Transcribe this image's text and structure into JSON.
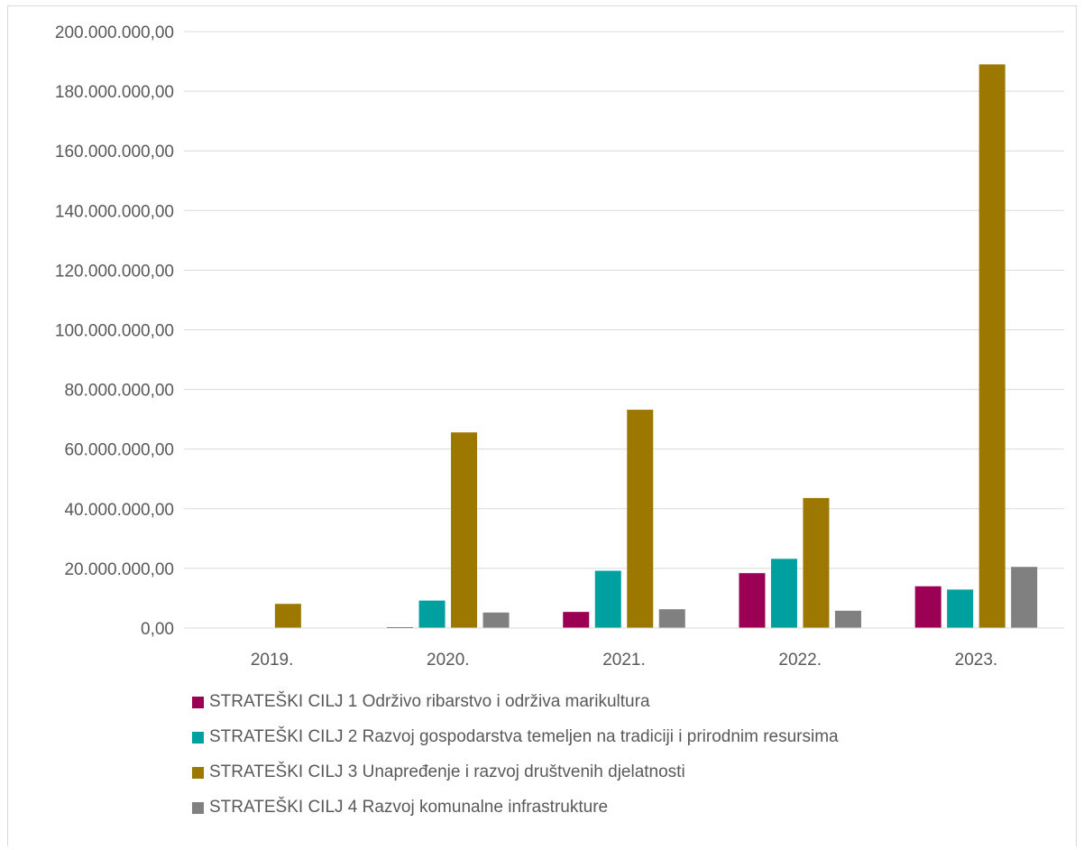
{
  "chart_data": {
    "type": "bar",
    "categories": [
      "2019.",
      "2020.",
      "2021.",
      "2022.",
      "2023."
    ],
    "series": [
      {
        "name": "STRATEŠKI CILJ 1 Održivo ribarstvo i održiva marikultura",
        "color": "#9b0055",
        "values": [
          0,
          300000,
          5400000,
          18400000,
          14000000
        ]
      },
      {
        "name": "STRATEŠKI CILJ 2 Razvoj gospodarstva temeljen na tradiciji i prirodnim resursima",
        "color": "#00a0a0",
        "values": [
          0,
          9200000,
          19200000,
          23200000,
          12900000
        ]
      },
      {
        "name": "STRATEŠKI CILJ 3 Unapređenje i razvoj društvenih djelatnosti",
        "color": "#9c7800",
        "values": [
          8100000,
          65600000,
          73200000,
          43600000,
          189000000
        ]
      },
      {
        "name": "STRATEŠKI CILJ 4 Razvoj komunalne infrastrukture",
        "color": "#808080",
        "values": [
          0,
          5200000,
          6300000,
          5800000,
          20500000
        ]
      }
    ],
    "yticks": [
      "0,00",
      "20.000.000,00",
      "40.000.000,00",
      "60.000.000,00",
      "80.000.000,00",
      "100.000.000,00",
      "120.000.000,00",
      "140.000.000,00",
      "160.000.000,00",
      "180.000.000,00",
      "200.000.000,00"
    ],
    "ylim": [
      0,
      200000000
    ],
    "grid": true,
    "legend_position": "bottom",
    "title": "",
    "xlabel": "",
    "ylabel": ""
  }
}
